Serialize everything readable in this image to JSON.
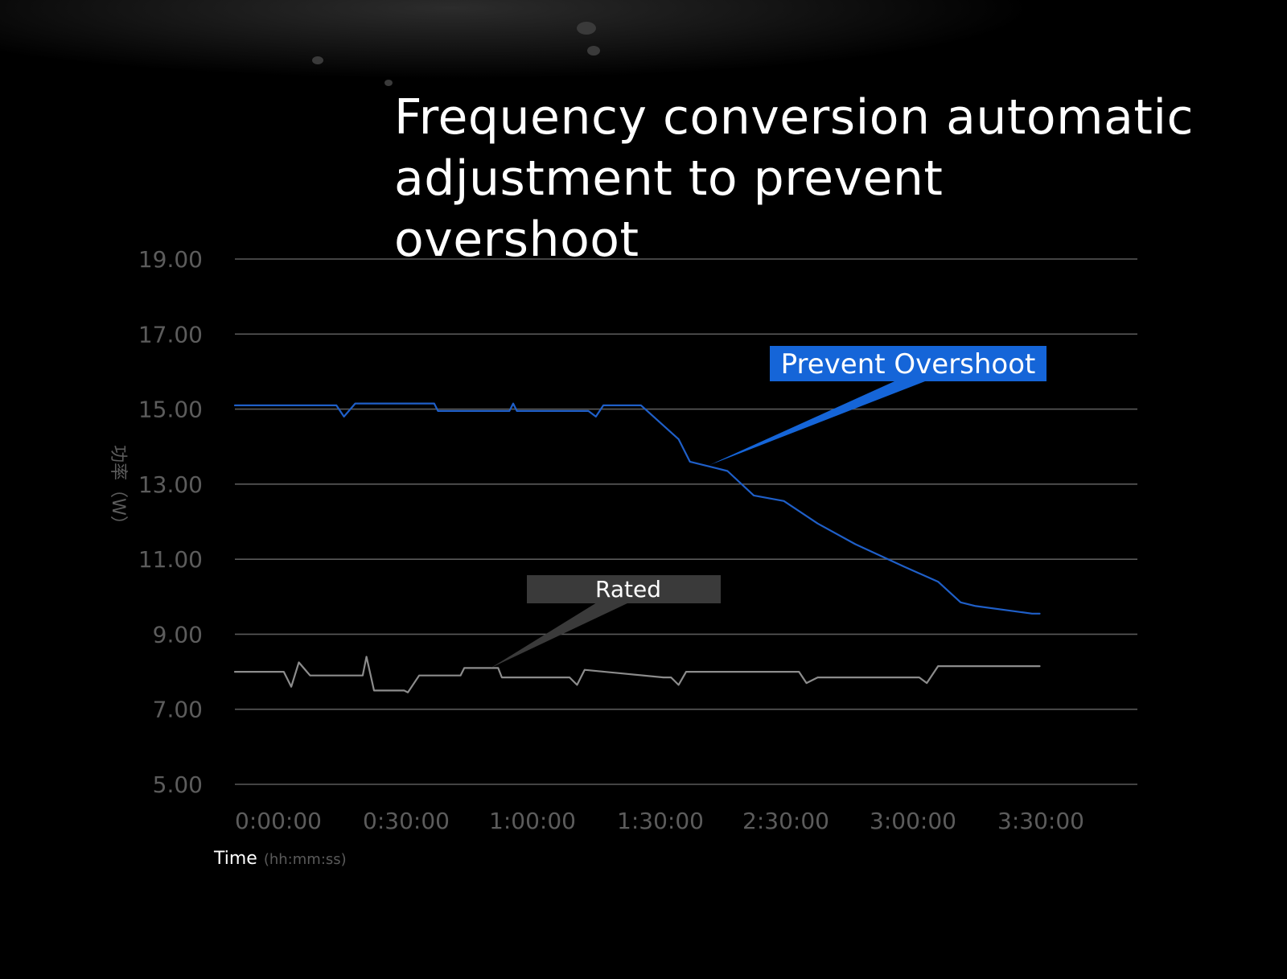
{
  "title_line1": "Frequency conversion automatic",
  "title_line2": "adjustment to prevent overshoot",
  "colors": {
    "background": "#000000",
    "grid": "#5a5a5a",
    "overshoot_series": "#1f5fc8",
    "rated_series": "#8c8c8c",
    "overshoot_callout": "#1565d8",
    "rated_callout": "#3a3a3a"
  },
  "chart_data": {
    "type": "line",
    "title": "Frequency conversion automatic adjustment to prevent overshoot",
    "xlabel": "Time",
    "xlabel_unit": "(hh:mm:ss)",
    "ylabel": "功率（W）",
    "ylim": [
      5,
      19
    ],
    "yticks": [
      "19.00",
      "17.00",
      "15.00",
      "13.00",
      "11.00",
      "9.00",
      "7.00",
      "5.00"
    ],
    "xticks": [
      "0:00:00",
      "0:30:00",
      "1:00:00",
      "1:30:00",
      "2:30:00",
      "3:00:00",
      "3:30:00"
    ],
    "xlim": [
      0,
      240
    ],
    "grid": true,
    "series": [
      {
        "name": "Prevent Overshoot",
        "x": [
          0,
          27,
          29,
          32,
          53,
          54,
          73,
          74,
          75,
          94,
          96,
          98,
          108,
          118,
          121,
          131,
          138,
          146,
          155,
          165,
          178,
          187,
          193,
          197,
          212,
          214
        ],
        "y": [
          15.1,
          15.1,
          14.8,
          15.15,
          15.15,
          14.95,
          14.95,
          15.15,
          14.95,
          14.95,
          14.8,
          15.1,
          15.1,
          14.2,
          13.6,
          13.35,
          12.7,
          12.55,
          11.95,
          11.4,
          10.8,
          10.4,
          9.85,
          9.75,
          9.55,
          9.55
        ]
      },
      {
        "name": "Rated",
        "x": [
          0,
          13,
          15,
          17,
          20,
          34,
          35,
          37,
          45,
          46,
          49,
          60,
          61,
          70,
          71,
          89,
          91,
          93,
          114,
          116,
          118,
          120,
          150,
          152,
          155,
          182,
          184,
          187,
          214
        ],
        "y": [
          8.0,
          8.0,
          7.6,
          8.25,
          7.9,
          7.9,
          8.4,
          7.5,
          7.5,
          7.45,
          7.9,
          7.9,
          8.1,
          8.1,
          7.85,
          7.85,
          7.65,
          8.05,
          7.85,
          7.85,
          7.65,
          8.0,
          8.0,
          7.7,
          7.85,
          7.85,
          7.7,
          8.15,
          8.15
        ]
      }
    ],
    "annotations": [
      {
        "text": "Prevent Overshoot",
        "target_x": 126,
        "target_y": 13.5
      },
      {
        "text": "Rated",
        "target_x": 68,
        "target_y": 8.1
      }
    ]
  }
}
